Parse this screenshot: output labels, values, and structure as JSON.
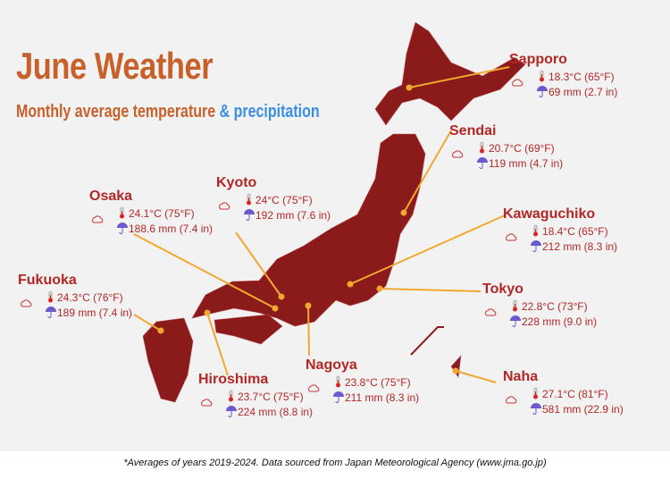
{
  "header": {
    "title": "June Weather",
    "subtitle_main": "Monthly average temperature",
    "subtitle_accent": "& precipitation"
  },
  "cities": [
    {
      "name": "Sapporo",
      "temperature": "18.3°C (65°F)",
      "precipitation": "69 mm (2.7 in)"
    },
    {
      "name": "Sendai",
      "temperature": "20.7°C (69°F)",
      "precipitation": "119 mm (4.7 in)"
    },
    {
      "name": "Kyoto",
      "temperature": "24°C (75°F)",
      "precipitation": "192 mm (7.6 in)"
    },
    {
      "name": "Osaka",
      "temperature": "24.1°C (75°F)",
      "precipitation": "188.6 mm (7.4 in)"
    },
    {
      "name": "Kawaguchiko",
      "temperature": "18.4°C (65°F)",
      "precipitation": "212 mm (8.3 in)"
    },
    {
      "name": "Fukuoka",
      "temperature": "24.3°C (76°F)",
      "precipitation": "189 mm (7.4 in)"
    },
    {
      "name": "Tokyo",
      "temperature": "22.8°C (73°F)",
      "precipitation": "228 mm (9.0 in)"
    },
    {
      "name": "Nagoya",
      "temperature": "23.8°C (75°F)",
      "precipitation": "211 mm (8.3 in)"
    },
    {
      "name": "Hiroshima",
      "temperature": "23.7°C (75°F)",
      "precipitation": "224 mm (8.8 in)"
    },
    {
      "name": "Naha",
      "temperature": "27.1°C (81°F)",
      "precipitation": "581 mm (22.9 in)"
    }
  ],
  "footnote": "*Averages of years 2019-2024. Data sourced from Japan Meteorological Agency (www.jma.go.jp)"
}
